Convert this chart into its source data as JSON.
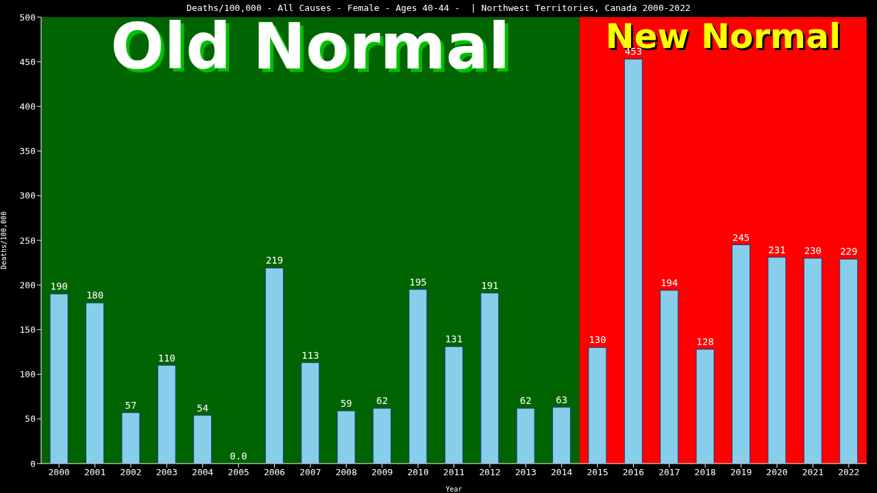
{
  "chart_data": {
    "type": "bar",
    "title": "Deaths/100,000 - All Causes - Female - Ages 40-44 -  | Northwest Territories, Canada 2000-2022",
    "xlabel": "Year",
    "ylabel": "Deaths/100,000",
    "categories": [
      "2000",
      "2001",
      "2002",
      "2003",
      "2004",
      "2005",
      "2006",
      "2007",
      "2008",
      "2009",
      "2010",
      "2011",
      "2012",
      "2013",
      "2014",
      "2015",
      "2016",
      "2017",
      "2018",
      "2019",
      "2020",
      "2021",
      "2022"
    ],
    "values": [
      190,
      180,
      57,
      110,
      54,
      0,
      219,
      113,
      59,
      62,
      195,
      131,
      191,
      62,
      63,
      130,
      453,
      194,
      128,
      245,
      231,
      230,
      229
    ],
    "value_labels": [
      "190",
      "180",
      "57",
      "110",
      "54",
      "0.0",
      "219",
      "113",
      "59",
      "62",
      "195",
      "131",
      "191",
      "62",
      "63",
      "130",
      "453",
      "194",
      "128",
      "245",
      "231",
      "230",
      "229"
    ],
    "color": "#87ceeb",
    "ylim": [
      0,
      500
    ],
    "yticks": [
      0,
      50,
      100,
      150,
      200,
      250,
      300,
      350,
      400,
      450,
      500
    ],
    "grid": false,
    "bands": [
      {
        "axis": "x",
        "from": "2000",
        "to": "2014",
        "label": "Old Normal",
        "color": "#006400"
      },
      {
        "axis": "x",
        "from": "2015",
        "to": "2022",
        "label": "New Normal",
        "color": "#ff0000"
      }
    ]
  }
}
